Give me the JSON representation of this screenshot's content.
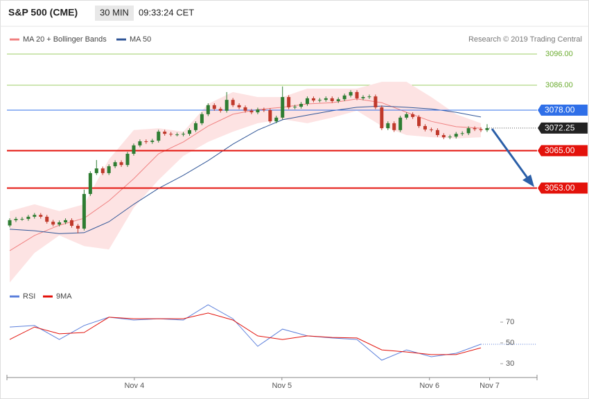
{
  "chart_data": [
    {
      "type": "candlestick",
      "title": "S&P 500 (CME)",
      "interval": "30 MIN",
      "time": "09:33:24 CET",
      "source": "Research © 2019 Trading Central",
      "up_color": "#2e7d32",
      "down_color": "#c0392b",
      "open": [
        3041.0,
        3042.7,
        3043.1,
        3043.1,
        3043.8,
        3044.4,
        3043.8,
        3042.2,
        3041.3,
        3042.0,
        3042.7,
        3040.9,
        3040.0,
        3051.1,
        3057.8,
        3059.3,
        3057.8,
        3060.0,
        3061.3,
        3060.4,
        3064.0,
        3066.7,
        3068.0,
        3067.8,
        3068.2,
        3071.1,
        3070.4,
        3070.2,
        3070.2,
        3070.4,
        3071.6,
        3073.8,
        3076.7,
        3079.6,
        3078.4,
        3077.8,
        3081.3,
        3079.6,
        3078.9,
        3077.8,
        3077.3,
        3078.2,
        3078.0,
        3074.4,
        3075.6,
        3082.2,
        3078.9,
        3079.1,
        3080.0,
        3081.8,
        3081.1,
        3081.3,
        3081.8,
        3080.9,
        3081.5,
        3082.7,
        3083.8,
        3081.8,
        3082.2,
        3082.4,
        3078.9,
        3072.2,
        3073.8,
        3071.6,
        3075.6,
        3076.7,
        3075.8,
        3072.9,
        3071.8,
        3071.6,
        3070.0,
        3069.3,
        3069.5,
        3070.4,
        3070.6,
        3072.2,
        3071.9,
        3071.6
      ],
      "high": [
        3043.3,
        3043.7,
        3043.7,
        3044.4,
        3045.0,
        3045.0,
        3044.4,
        3042.8,
        3042.6,
        3043.3,
        3043.3,
        3041.5,
        3052.5,
        3058.4,
        3062.0,
        3059.9,
        3060.6,
        3061.9,
        3061.9,
        3064.6,
        3067.3,
        3068.6,
        3068.6,
        3068.8,
        3071.7,
        3071.7,
        3071.0,
        3070.8,
        3071.0,
        3072.2,
        3074.4,
        3077.3,
        3080.2,
        3080.2,
        3079.0,
        3083.8,
        3081.9,
        3080.2,
        3079.5,
        3078.4,
        3078.8,
        3078.8,
        3078.6,
        3076.2,
        3085.6,
        3082.8,
        3079.7,
        3080.6,
        3082.4,
        3082.4,
        3081.9,
        3082.4,
        3082.4,
        3082.1,
        3083.3,
        3084.4,
        3084.4,
        3082.8,
        3083.0,
        3083.0,
        3079.5,
        3074.4,
        3074.4,
        3076.2,
        3077.3,
        3077.3,
        3076.4,
        3073.5,
        3072.4,
        3072.2,
        3070.6,
        3070.1,
        3071.0,
        3071.2,
        3072.8,
        3072.8,
        3072.5,
        3073.5
      ],
      "low": [
        3040.4,
        3042.1,
        3042.5,
        3042.5,
        3043.2,
        3043.2,
        3041.6,
        3040.7,
        3040.7,
        3041.4,
        3040.3,
        3038.5,
        3039.4,
        3050.5,
        3057.2,
        3057.2,
        3057.2,
        3059.4,
        3059.8,
        3059.8,
        3063.4,
        3066.1,
        3067.2,
        3067.2,
        3067.6,
        3069.8,
        3069.6,
        3069.6,
        3069.6,
        3069.8,
        3071.0,
        3073.2,
        3076.1,
        3077.8,
        3077.2,
        3077.2,
        3079.0,
        3078.3,
        3077.2,
        3076.7,
        3076.7,
        3077.4,
        3073.8,
        3073.8,
        3075.0,
        3078.3,
        3078.3,
        3078.5,
        3079.4,
        3080.5,
        3080.5,
        3080.7,
        3080.3,
        3080.3,
        3080.9,
        3082.1,
        3081.2,
        3081.2,
        3081.6,
        3078.3,
        3071.6,
        3071.6,
        3071.0,
        3071.0,
        3075.0,
        3075.2,
        3072.3,
        3071.2,
        3071.0,
        3069.4,
        3068.7,
        3068.7,
        3068.9,
        3069.8,
        3070.0,
        3071.3,
        3071.0,
        3071.0
      ],
      "close": [
        3042.7,
        3043.1,
        3043.1,
        3043.8,
        3044.4,
        3043.8,
        3042.2,
        3041.3,
        3042.0,
        3042.7,
        3040.9,
        3040.0,
        3051.1,
        3057.8,
        3059.3,
        3057.8,
        3060.0,
        3061.3,
        3060.4,
        3064.0,
        3066.7,
        3068.0,
        3067.8,
        3068.2,
        3071.1,
        3070.4,
        3070.2,
        3070.2,
        3070.4,
        3071.6,
        3073.8,
        3076.7,
        3079.6,
        3078.4,
        3077.8,
        3081.3,
        3079.6,
        3078.9,
        3077.8,
        3077.3,
        3078.2,
        3078.0,
        3074.4,
        3075.6,
        3082.2,
        3078.9,
        3079.1,
        3080.0,
        3081.8,
        3081.1,
        3081.3,
        3081.8,
        3080.9,
        3081.5,
        3082.7,
        3083.8,
        3081.8,
        3082.2,
        3082.4,
        3078.9,
        3072.2,
        3073.8,
        3071.6,
        3075.6,
        3076.7,
        3075.8,
        3072.9,
        3071.8,
        3071.6,
        3070.0,
        3069.3,
        3069.5,
        3070.4,
        3070.6,
        3072.2,
        3071.9,
        3071.6,
        3072.25
      ],
      "bollinger": {
        "name": "MA 20 + Bollinger Bands",
        "color": "#f08080",
        "band_color": "#fde3e3",
        "x": [
          0,
          4,
          8,
          12,
          16,
          20,
          24,
          28,
          32,
          36,
          40,
          44,
          48,
          52,
          56,
          60,
          64,
          68,
          72,
          76
        ],
        "middle": [
          3032.9,
          3037.8,
          3041.1,
          3043.3,
          3048.9,
          3056.0,
          3064.0,
          3067.8,
          3072.9,
          3076.7,
          3078.2,
          3078.9,
          3080.0,
          3080.4,
          3081.6,
          3080.4,
          3077.3,
          3074.4,
          3072.7,
          3072.2
        ],
        "upper": [
          3045.6,
          3047.8,
          3045.6,
          3047.8,
          3062.2,
          3071.6,
          3072.2,
          3071.1,
          3080.0,
          3083.8,
          3082.2,
          3082.2,
          3084.9,
          3084.9,
          3084.9,
          3087.1,
          3087.1,
          3082.2,
          3076.7,
          3073.8
        ],
        "lower": [
          3022.7,
          3032.2,
          3037.8,
          3034.4,
          3033.3,
          3046.7,
          3055.6,
          3063.3,
          3067.8,
          3071.1,
          3073.8,
          3075.1,
          3073.8,
          3075.6,
          3077.8,
          3072.9,
          3070.0,
          3069.3,
          3068.9,
          3069.3
        ]
      },
      "ma50": {
        "name": "MA 50",
        "color": "#2f5597",
        "x": [
          0,
          4,
          8,
          12,
          16,
          20,
          24,
          28,
          32,
          36,
          40,
          44,
          48,
          52,
          56,
          60,
          64,
          68,
          72,
          76
        ],
        "values": [
          3039.8,
          3039.3,
          3038.4,
          3038.7,
          3042.2,
          3047.8,
          3052.9,
          3057.1,
          3061.8,
          3067.1,
          3071.6,
          3074.9,
          3076.4,
          3077.8,
          3078.9,
          3079.3,
          3078.9,
          3078.4,
          3077.3,
          3075.8
        ]
      },
      "levels": [
        {
          "value": 3078,
          "label": "3078.00",
          "color": "#2f6fe8"
        },
        {
          "value": 3065,
          "label": "3065.00",
          "color": "#e3120b"
        },
        {
          "value": 3053,
          "label": "3053.00",
          "color": "#e3120b"
        }
      ],
      "last": {
        "value": 3072.25,
        "label": "3072.25",
        "color": "#222222"
      },
      "xlim": [
        -0.45,
        85.05
      ],
      "ylim": [
        3021,
        3099
      ],
      "yticks": [
        {
          "value": 3096,
          "label": "3096.00"
        },
        {
          "value": 3086,
          "label": "3086.00"
        }
      ],
      "grid_color": "#9ccc65"
    },
    {
      "type": "line",
      "x": [
        0,
        4,
        8,
        12,
        16,
        20,
        24,
        28,
        32,
        36,
        40,
        44,
        48,
        52,
        56,
        60,
        64,
        68,
        72,
        76
      ],
      "series": [
        {
          "name": "RSI",
          "color": "#5b7fdb",
          "values": [
            65.3,
            66.7,
            53.3,
            66.7,
            74.7,
            72.0,
            73.3,
            72.0,
            86.7,
            73.3,
            46.7,
            63.3,
            56.7,
            54.7,
            53.3,
            33.3,
            43.3,
            36.7,
            40.0,
            48.7
          ]
        },
        {
          "name": "9MA",
          "color": "#e3120b",
          "values": [
            53.3,
            65.3,
            58.7,
            60.0,
            74.7,
            73.3,
            73.3,
            73.3,
            78.7,
            72.0,
            56.7,
            53.3,
            56.7,
            55.3,
            54.7,
            43.3,
            41.3,
            38.7,
            38.7,
            45.3
          ]
        }
      ],
      "xlim": [
        -0.45,
        85.05
      ],
      "ylim": [
        17,
        97
      ],
      "yticks": [
        30,
        50,
        70
      ],
      "xticks": [
        {
          "value": 20.1,
          "label": "Nov 4"
        },
        {
          "value": 43.9,
          "label": "Nov 5"
        },
        {
          "value": 67.7,
          "label": "Nov 6"
        },
        {
          "value": 77.4,
          "label": "Nov 7"
        }
      ]
    }
  ]
}
